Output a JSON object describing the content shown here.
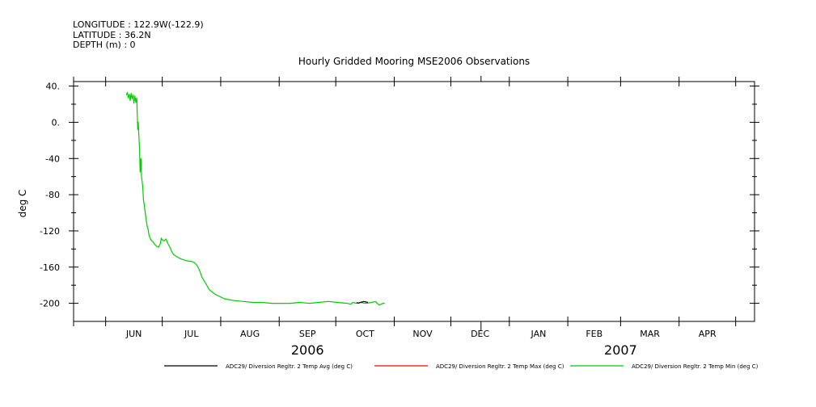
{
  "header": {
    "longitude": "LONGITUDE : 122.9W(-122.9)",
    "latitude": "LATITUDE : 36.2N",
    "depth": "DEPTH (m) : 0"
  },
  "chart_data": {
    "type": "line",
    "title": "Hourly Gridded Mooring MSE2006 Observations",
    "xlabel": "",
    "ylabel": "deg C",
    "ylim": [
      -220,
      45
    ],
    "yticks": [
      40,
      0,
      -40,
      -80,
      -120,
      -160,
      -200
    ],
    "ytick_labels": [
      "40.",
      "0.",
      "-40",
      "-80",
      "-120",
      "-160",
      "-200"
    ],
    "x_axis": {
      "unit": "days since 2006-05-15",
      "range": [
        0,
        361
      ],
      "month_boundaries": [
        0,
        17,
        47,
        78,
        109,
        139,
        170,
        200,
        231,
        262,
        290,
        321,
        351
      ],
      "month_labels": [
        {
          "label": "JUN",
          "center": 32
        },
        {
          "label": "JUL",
          "center": 62.5
        },
        {
          "label": "AUG",
          "center": 93.5
        },
        {
          "label": "SEP",
          "center": 124
        },
        {
          "label": "OCT",
          "center": 154.5
        },
        {
          "label": "NOV",
          "center": 185
        },
        {
          "label": "DEC",
          "center": 215.5
        },
        {
          "label": "JAN",
          "center": 246.5
        },
        {
          "label": "FEB",
          "center": 276
        },
        {
          "label": "MAR",
          "center": 305.5
        },
        {
          "label": "APR",
          "center": 336
        }
      ],
      "year_labels": [
        {
          "label": "2006",
          "center": 124
        },
        {
          "label": "2007",
          "center": 290
        }
      ],
      "year_boundary": 216
    },
    "legend": {
      "placement": "bottom",
      "entries": [
        {
          "label": "ADC29/ Diversion Regltr. 2 Temp Avg (deg C)",
          "color": "#000000"
        },
        {
          "label": "ADC29/ Diversion Regltr. 2 Temp Max (deg C)",
          "color": "#ff0000"
        },
        {
          "label": "ADC29/ Diversion Regltr. 2 Temp Min (deg C)",
          "color": "#00cc00"
        }
      ]
    },
    "series": [
      {
        "name": "ADC29/ Diversion Regltr. 2 Temp Min (deg C)",
        "color": "#00cc00",
        "x": [
          28.0,
          28.5,
          29.0,
          29.5,
          30.0,
          30.5,
          31.0,
          31.5,
          32.0,
          32.5,
          33.0,
          33.5,
          34.0,
          34.3,
          34.6,
          35.0,
          35.3,
          35.7,
          36.0,
          36.3,
          36.7,
          37.0,
          37.5,
          38.0,
          38.5,
          39.0,
          39.5,
          40.0,
          41.0,
          42.0,
          43.0,
          44.0,
          45.0,
          46.0,
          46.5,
          47.0,
          48.0,
          49.0,
          50.0,
          51.0,
          51.5,
          52.0,
          53.0,
          55.0,
          57.0,
          60.0,
          63.0,
          64.0,
          65.0,
          66.0,
          67.0,
          68.0,
          70.0,
          72.0,
          75.0,
          80.0,
          85.0,
          90.0,
          95.0,
          100.0,
          105.0,
          110.0,
          115.0,
          120.0,
          125.0,
          130.0,
          135.0,
          140.0,
          145.0,
          147.0,
          148.0,
          150.0,
          152.0,
          155.0,
          158.0,
          160.0,
          161.0,
          162.0,
          163.0,
          164.0,
          165.0
        ],
        "values": [
          30,
          33,
          27,
          31,
          24,
          32,
          26,
          30,
          21,
          29,
          22,
          27,
          -8,
          0,
          -15,
          -30,
          -55,
          -40,
          -60,
          -65,
          -72,
          -85,
          -92,
          -100,
          -108,
          -115,
          -118,
          -125,
          -130,
          -132,
          -135,
          -137,
          -138,
          -134,
          -128,
          -130,
          -131,
          -129,
          -134,
          -138,
          -140,
          -143,
          -146,
          -149,
          -151,
          -153,
          -154,
          -155,
          -157,
          -160,
          -165,
          -171,
          -178,
          -185,
          -190,
          -195,
          -197,
          -198,
          -199,
          -199,
          -200,
          -200,
          -200,
          -199,
          -200,
          -199,
          -198,
          -199,
          -200,
          -201,
          -199,
          -200,
          -199,
          -200,
          -199,
          -198,
          -200,
          -202,
          -201,
          -200,
          -200
        ]
      },
      {
        "name": "ADC29/ Diversion Regltr. 2 Temp Avg (deg C)",
        "color": "#000000",
        "x": [
          150.0,
          151.0,
          152.0,
          154.0,
          156.0
        ],
        "values": [
          -199,
          -200,
          -199,
          -198,
          -199
        ]
      },
      {
        "name": "ADC29/ Diversion Regltr. 2 Temp Max (deg C)",
        "color": "#ff0000",
        "x": [],
        "values": []
      }
    ]
  }
}
